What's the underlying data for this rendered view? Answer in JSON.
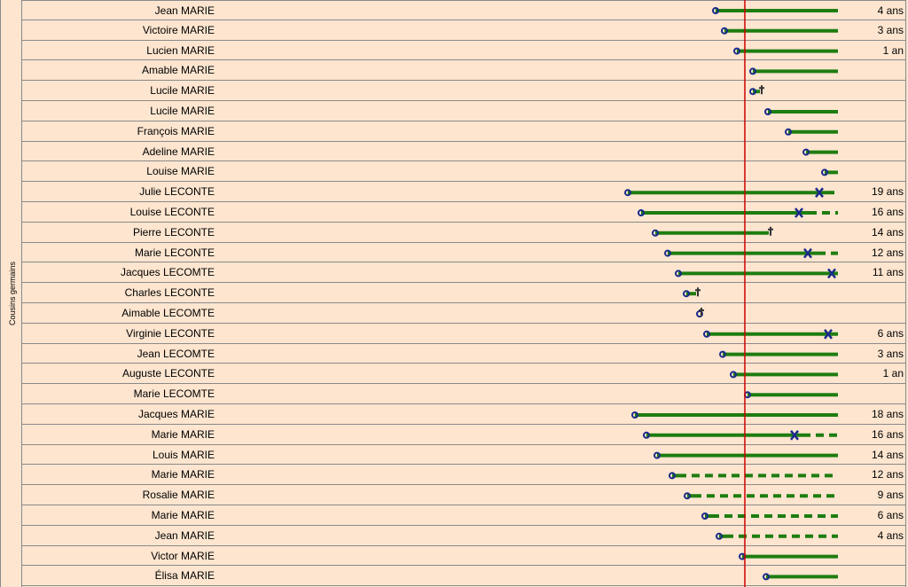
{
  "group_label": "Cousins germains",
  "colors": {
    "background": "#fde5cf",
    "grid": "#8a8a8a",
    "life_line": "#1e7d10",
    "reference_line": "#cc0000",
    "marker": "#1a2a8a"
  },
  "timeline": {
    "x_min": 0,
    "x_max": 1000,
    "reference": 840,
    "note": ""
  },
  "rows": [
    {
      "name": "Jean MARIE",
      "age": "4 ans",
      "start": 807,
      "end": 945,
      "solid_end": 945,
      "end_marker": "none"
    },
    {
      "name": "Victoire MARIE",
      "age": "3 ans",
      "start": 817,
      "end": 945,
      "solid_end": 945,
      "end_marker": "none"
    },
    {
      "name": "Lucien MARIE",
      "age": "1 an",
      "start": 831,
      "end": 945,
      "solid_end": 945,
      "end_marker": "none"
    },
    {
      "name": "Amable MARIE",
      "age": "",
      "start": 849,
      "end": 945,
      "solid_end": 945,
      "end_marker": "none"
    },
    {
      "name": "Lucile MARIE",
      "age": "",
      "start": 849,
      "end": 857,
      "solid_end": 857,
      "end_marker": "cross"
    },
    {
      "name": "Lucile MARIE",
      "age": "",
      "start": 866,
      "end": 945,
      "solid_end": 945,
      "end_marker": "none"
    },
    {
      "name": "François MARIE",
      "age": "",
      "start": 889,
      "end": 945,
      "solid_end": 945,
      "end_marker": "none"
    },
    {
      "name": "Adeline MARIE",
      "age": "",
      "start": 909,
      "end": 945,
      "solid_end": 945,
      "end_marker": "none"
    },
    {
      "name": "Louise MARIE",
      "age": "",
      "start": 930,
      "end": 945,
      "solid_end": 945,
      "end_marker": "none"
    },
    {
      "name": "Julie LECONTE",
      "age": "19 ans",
      "start": 708,
      "end": 945,
      "solid_end": 932,
      "end_marker": "x",
      "x_pos": 924
    },
    {
      "name": "Louise LECONTE",
      "age": "16 ans",
      "start": 723,
      "end": 945,
      "solid_end": 912,
      "end_marker": "x",
      "x_pos": 901
    },
    {
      "name": "Pierre LECONTE",
      "age": "14 ans",
      "start": 739,
      "end": 867,
      "solid_end": 867,
      "end_marker": "cross"
    },
    {
      "name": "Marie LECONTE",
      "age": "12 ans",
      "start": 753,
      "end": 945,
      "solid_end": 922,
      "end_marker": "x",
      "x_pos": 911
    },
    {
      "name": "Jacques LECOMTE",
      "age": "11 ans",
      "start": 765,
      "end": 945,
      "solid_end": 945,
      "end_marker": "x",
      "x_pos": 938
    },
    {
      "name": "Charles LECONTE",
      "age": "",
      "start": 774,
      "end": 785,
      "solid_end": 785,
      "end_marker": "cross"
    },
    {
      "name": "Aimable LECOMTE",
      "age": "",
      "start": 789,
      "end": 789,
      "solid_end": 789,
      "end_marker": "cross"
    },
    {
      "name": "Virginie LECONTE",
      "age": "6 ans",
      "start": 797,
      "end": 945,
      "solid_end": 945,
      "end_marker": "x",
      "x_pos": 934
    },
    {
      "name": "Jean LECOMTE",
      "age": "3 ans",
      "start": 815,
      "end": 945,
      "solid_end": 945,
      "end_marker": "none"
    },
    {
      "name": "Auguste LECONTE",
      "age": "1 an",
      "start": 827,
      "end": 945,
      "solid_end": 945,
      "end_marker": "none"
    },
    {
      "name": "Marie LECOMTE",
      "age": "",
      "start": 843,
      "end": 945,
      "solid_end": 945,
      "end_marker": "none"
    },
    {
      "name": "Jacques MARIE",
      "age": "18 ans",
      "start": 716,
      "end": 945,
      "solid_end": 945,
      "end_marker": "none"
    },
    {
      "name": "Marie MARIE",
      "age": "16 ans",
      "start": 729,
      "end": 945,
      "solid_end": 905,
      "end_marker": "x",
      "x_pos": 896
    },
    {
      "name": "Louis MARIE",
      "age": "14 ans",
      "start": 741,
      "end": 945,
      "solid_end": 945,
      "end_marker": "none"
    },
    {
      "name": "Marie MARIE",
      "age": "12 ans",
      "start": 758,
      "end": 945,
      "solid_end": 765,
      "end_marker": "none"
    },
    {
      "name": "Rosalie MARIE",
      "age": "9 ans",
      "start": 775,
      "end": 945,
      "solid_end": 782,
      "end_marker": "none"
    },
    {
      "name": "Marie MARIE",
      "age": "6 ans",
      "start": 795,
      "end": 945,
      "solid_end": 802,
      "end_marker": "none"
    },
    {
      "name": "Jean MARIE",
      "age": "4 ans",
      "start": 811,
      "end": 945,
      "solid_end": 818,
      "end_marker": "none"
    },
    {
      "name": "Victor MARIE",
      "age": "",
      "start": 837,
      "end": 945,
      "solid_end": 945,
      "end_marker": "none"
    },
    {
      "name": "Élisa MARIE",
      "age": "",
      "start": 864,
      "end": 945,
      "solid_end": 945,
      "end_marker": "none"
    }
  ]
}
